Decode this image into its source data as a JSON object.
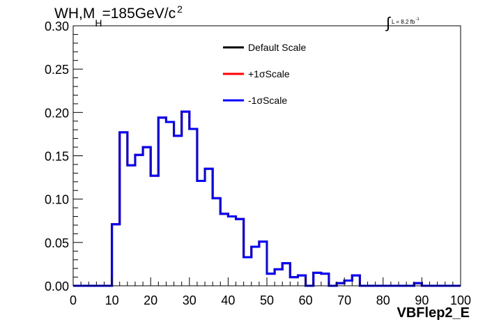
{
  "title": {
    "main": "WH,M",
    "sub": "H",
    "rest": "=185GeV/c",
    "sup": "2"
  },
  "luminosity": {
    "integral": "∫",
    "text": "L = 8.2 fb",
    "sup": "-1"
  },
  "chart_data": {
    "type": "histogram",
    "xlabel": "VBFlep2_E",
    "ylabel": "",
    "xlim": [
      0,
      100
    ],
    "ylim": [
      0,
      0.3
    ],
    "x_ticks": [
      "0",
      "10",
      "20",
      "30",
      "40",
      "50",
      "60",
      "70",
      "80",
      "90",
      "100"
    ],
    "y_ticks": [
      "0.00",
      "0.05",
      "0.10",
      "0.15",
      "0.20",
      "0.25",
      "0.30"
    ],
    "bin_width": 2,
    "bin_edges_start": 0,
    "legend_position": "top-center",
    "series": [
      {
        "name": "Default Scale",
        "color": "#000000",
        "values": [
          0,
          0,
          0,
          0,
          0,
          0.071,
          0.177,
          0.139,
          0.151,
          0.16,
          0.127,
          0.194,
          0.189,
          0.173,
          0.201,
          0.181,
          0.121,
          0.135,
          0.101,
          0.083,
          0.08,
          0.077,
          0.033,
          0.045,
          0.051,
          0.014,
          0.019,
          0.026,
          0.01,
          0.012,
          0,
          0.015,
          0.014,
          0,
          0.003,
          0.006,
          0.012,
          0,
          0,
          0,
          0,
          0,
          0,
          0,
          0.003,
          0,
          0,
          0,
          0,
          0
        ]
      },
      {
        "name": "+1σScale",
        "color": "#ff0000",
        "values": [
          0,
          0,
          0,
          0,
          0,
          0.071,
          0.177,
          0.139,
          0.151,
          0.16,
          0.127,
          0.194,
          0.189,
          0.173,
          0.201,
          0.181,
          0.121,
          0.135,
          0.101,
          0.083,
          0.08,
          0.077,
          0.033,
          0.045,
          0.051,
          0.014,
          0.019,
          0.026,
          0.01,
          0.012,
          0,
          0.015,
          0.014,
          0,
          0.003,
          0.006,
          0.012,
          0,
          0,
          0,
          0,
          0,
          0,
          0,
          0.003,
          0,
          0,
          0,
          0,
          0
        ]
      },
      {
        "name": "-1σScale",
        "color": "#0000ff",
        "values": [
          0,
          0,
          0,
          0,
          0,
          0.071,
          0.177,
          0.139,
          0.151,
          0.16,
          0.127,
          0.194,
          0.189,
          0.173,
          0.201,
          0.181,
          0.121,
          0.135,
          0.101,
          0.083,
          0.08,
          0.077,
          0.033,
          0.045,
          0.051,
          0.014,
          0.019,
          0.026,
          0.01,
          0.012,
          0,
          0.015,
          0.014,
          0,
          0.003,
          0.006,
          0.012,
          0,
          0,
          0,
          0,
          0,
          0,
          0,
          0.003,
          0,
          0,
          0,
          0,
          0
        ]
      }
    ]
  }
}
